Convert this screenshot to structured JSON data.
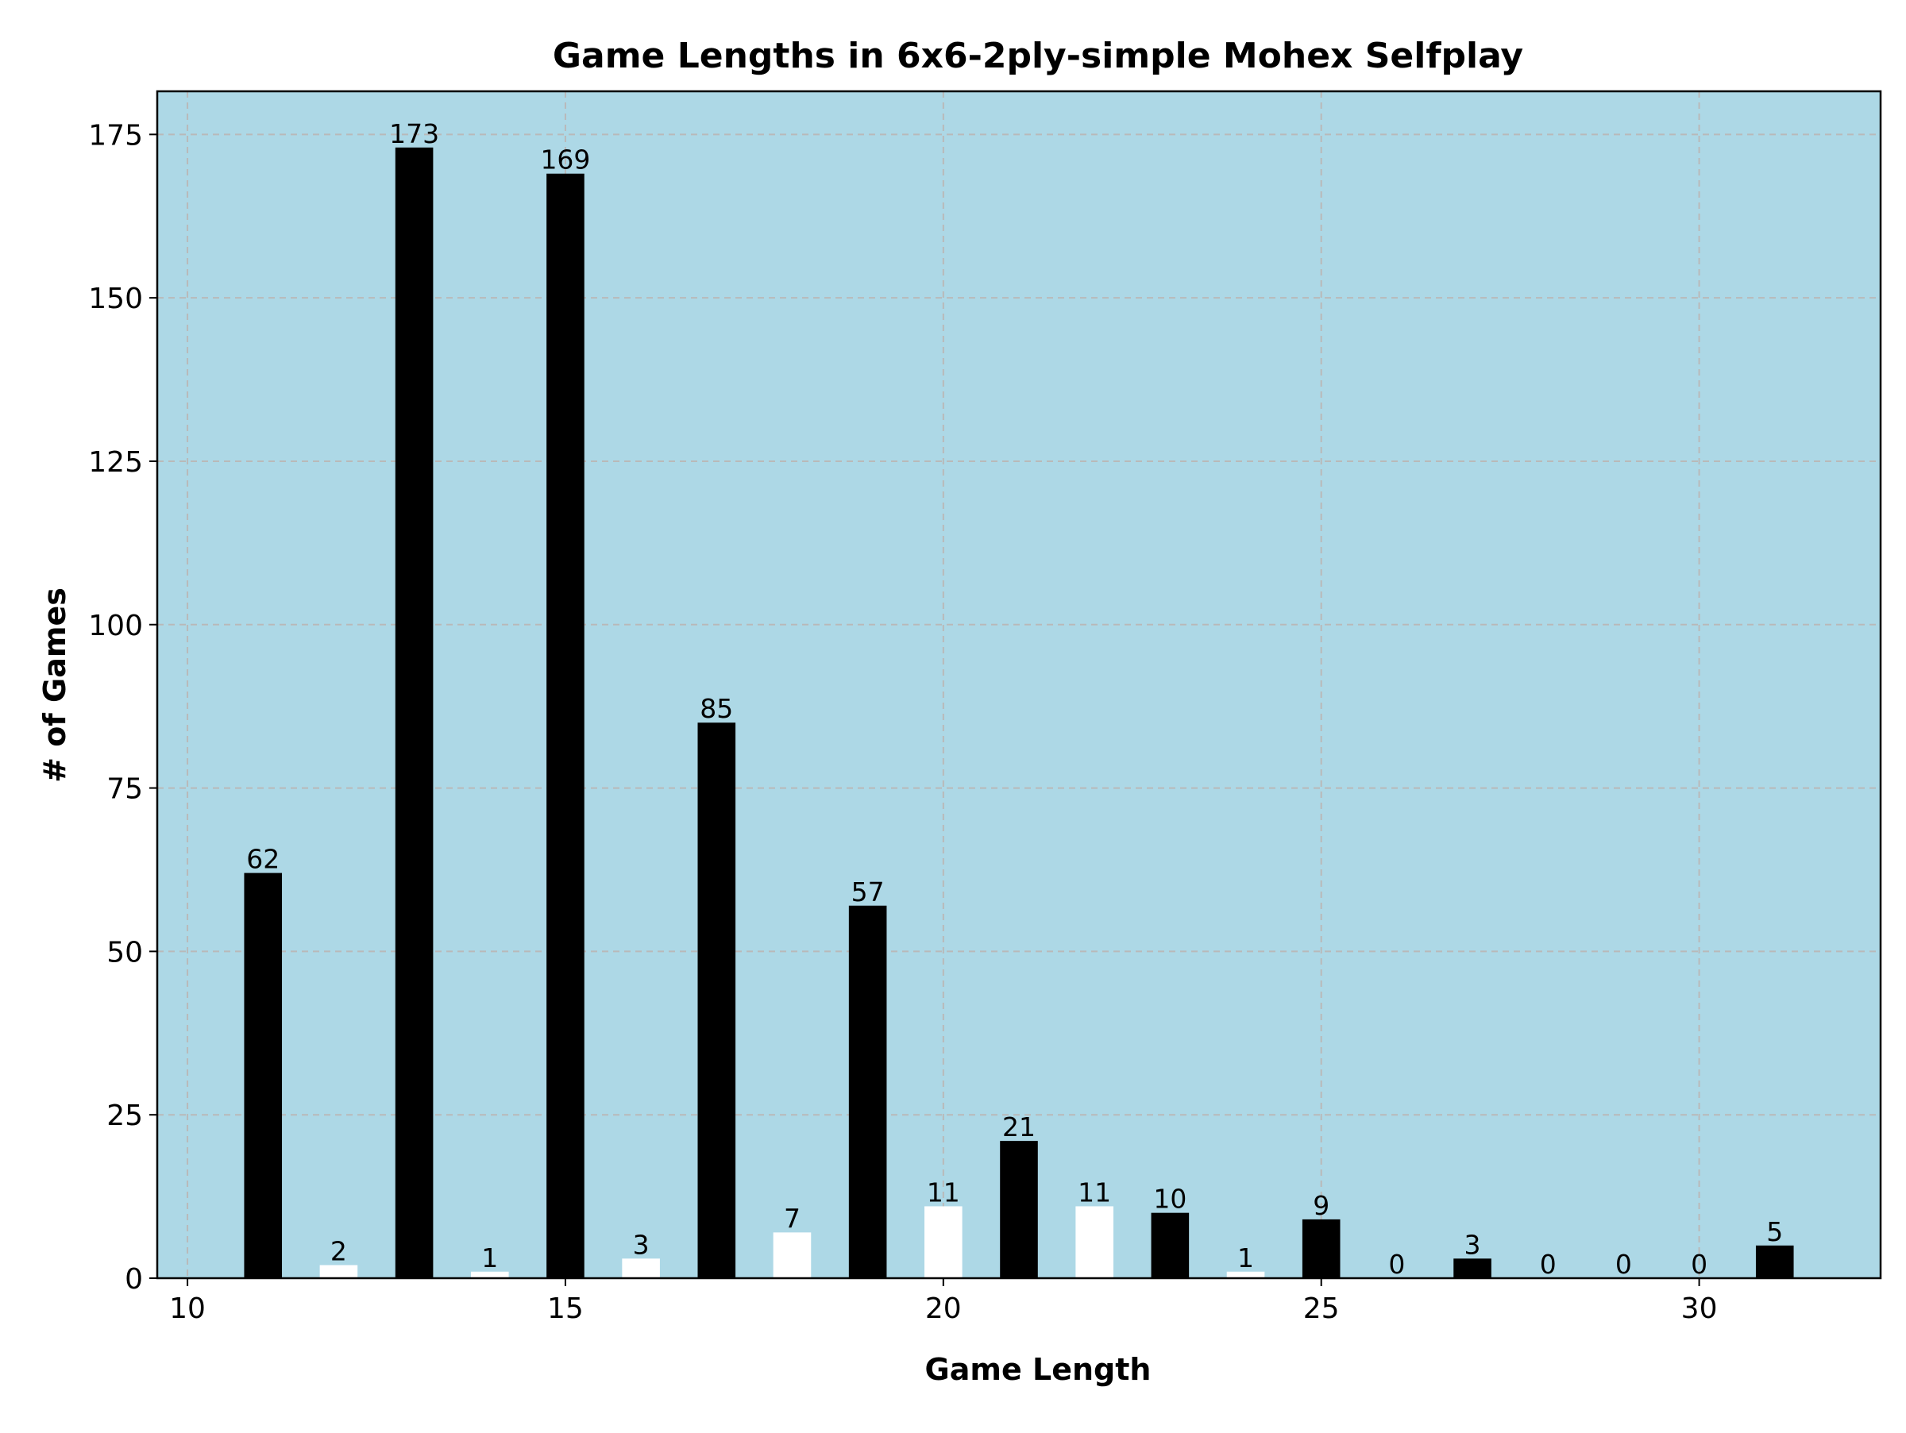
{
  "chart_data": {
    "type": "bar",
    "title": "Game Lengths in 6x6-2ply-simple Mohex Selfplay",
    "xlabel": "Game Length",
    "ylabel": "# of Games",
    "x": [
      11,
      12,
      13,
      14,
      15,
      16,
      17,
      18,
      19,
      20,
      21,
      22,
      23,
      24,
      25,
      26,
      27,
      28,
      29,
      30,
      31
    ],
    "values": [
      62,
      2,
      173,
      1,
      169,
      3,
      85,
      7,
      57,
      11,
      21,
      11,
      10,
      1,
      9,
      0,
      3,
      0,
      0,
      0,
      5
    ],
    "bar_colors": [
      "#000000",
      "#ffffff",
      "#000000",
      "#ffffff",
      "#000000",
      "#ffffff",
      "#000000",
      "#ffffff",
      "#000000",
      "#ffffff",
      "#000000",
      "#ffffff",
      "#000000",
      "#ffffff",
      "#000000",
      "#ffffff",
      "#000000",
      "#ffffff",
      "#000000",
      "#ffffff",
      "#000000"
    ],
    "xlim": [
      9.6,
      32.4
    ],
    "ylim": [
      0,
      181.6
    ],
    "xticks": [
      10,
      15,
      20,
      25,
      30
    ],
    "yticks": [
      0,
      25,
      50,
      75,
      100,
      125,
      150,
      175
    ],
    "grid": true,
    "background_color": "#add8e6"
  }
}
